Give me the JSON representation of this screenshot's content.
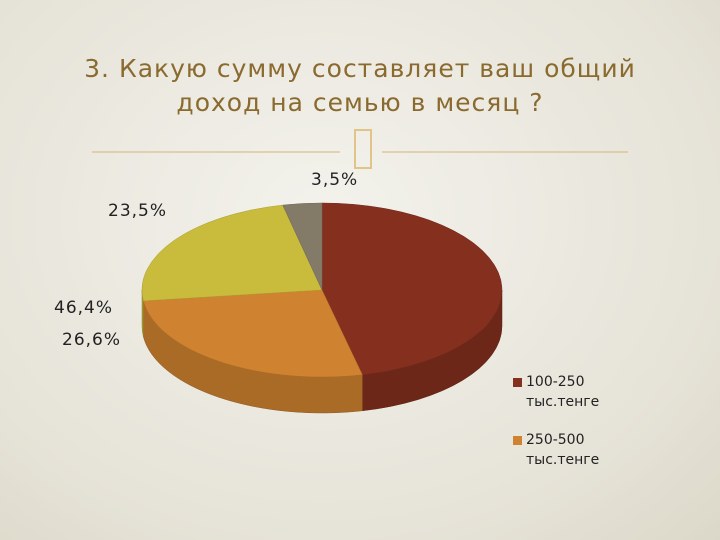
{
  "title": "3. Какую сумму составляет ваш общий доход на семью в месяц ?",
  "chart_data": {
    "type": "pie",
    "categories": [
      "100-250 тыс.тенге",
      "250-500 тыс.тенге",
      null,
      null
    ],
    "values": [
      46.4,
      26.6,
      23.5,
      3.5
    ],
    "value_labels": [
      "46,4%",
      "26,6%",
      "23,5%",
      "3,5%"
    ],
    "colors": [
      "#85301f",
      "#cf8230",
      "#c9bb3c",
      "#847a68"
    ],
    "legend": "right"
  }
}
